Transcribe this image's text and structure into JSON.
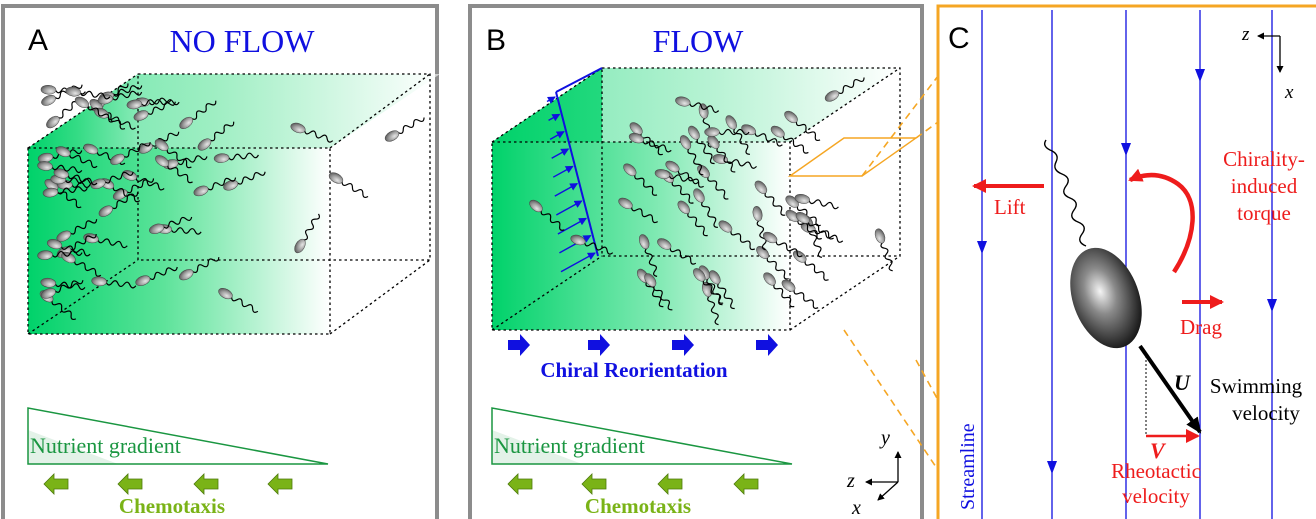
{
  "panels": {
    "a": {
      "letter": "A",
      "title": "NO FLOW"
    },
    "b": {
      "letter": "B",
      "title": "FLOW",
      "reorientation_label": "Chiral Reorientation"
    },
    "c": {
      "letter": "C"
    }
  },
  "gradient": {
    "label": "Nutrient gradient",
    "motion_label": "Chemotaxis"
  },
  "axes": {
    "b": {
      "y": "y",
      "z": "z",
      "x": "x"
    },
    "c": {
      "z": "z",
      "x": "x"
    }
  },
  "forces": {
    "lift": "Lift",
    "drag": "Drag",
    "torque_line1": "Chirality-",
    "torque_line2": "induced",
    "torque_line3": "torque",
    "u_symbol": "U",
    "swim_line1": "Swimming",
    "swim_line2": "velocity",
    "v_symbol": "V",
    "rheo_line1": "Rheotactic",
    "rheo_line2": "velocity",
    "streamline": "Streamline"
  },
  "colors": {
    "panel_border": "#8c8c8c",
    "panel_c_border": "#f5a623",
    "green": "#00d26a",
    "gradient_green": "#1a9641",
    "chemotaxis_green": "#7ab317",
    "blue": "#1010e0",
    "red": "#ee1c1c"
  }
}
